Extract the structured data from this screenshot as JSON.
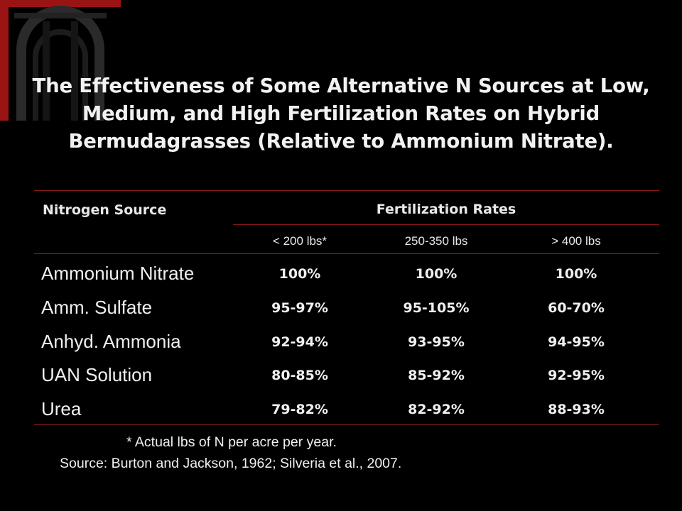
{
  "slide": {
    "title": "The Effectiveness of Some Alternative N Sources at Low, Medium, and High Fertilization Rates on Hybrid Bermudagrasses (Relative to Ammonium Nitrate)."
  },
  "table": {
    "source_header": "Nitrogen Source",
    "rates_header": "Fertilization Rates",
    "rate_columns": [
      "< 200 lbs*",
      "250-350 lbs",
      "> 400 lbs"
    ],
    "rows": [
      {
        "source": "Ammonium Nitrate",
        "values": [
          "100%",
          "100%",
          "100%"
        ]
      },
      {
        "source": "Amm. Sulfate",
        "values": [
          "95-97%",
          "95-105%",
          "60-70%"
        ]
      },
      {
        "source": "Anhyd. Ammonia",
        "values": [
          "92-94%",
          "93-95%",
          "94-95%"
        ]
      },
      {
        "source": "UAN Solution",
        "values": [
          "80-85%",
          "85-92%",
          "92-95%"
        ]
      },
      {
        "source": "Urea",
        "values": [
          "79-82%",
          "82-92%",
          "88-93%"
        ]
      }
    ]
  },
  "notes": {
    "footnote": "* Actual lbs of N per acre per year.",
    "source": "Source: Burton and Jackson, 1962; Silveria et al., 2007."
  },
  "colors": {
    "background": "#000000",
    "rule": "#8b1a1a",
    "text": "#f0f0f0",
    "accent": "#b01818"
  }
}
